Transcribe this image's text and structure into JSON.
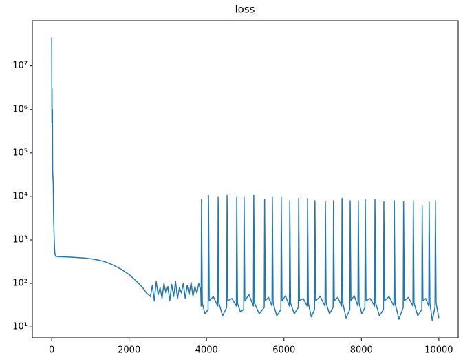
{
  "chart_data": {
    "type": "line",
    "title": "loss",
    "color": "#1f77b4",
    "yscale": "log",
    "xlim": [
      -500,
      10500
    ],
    "ylim": [
      5.6,
      110000000
    ],
    "xticks": [
      0,
      2000,
      4000,
      6000,
      8000,
      10000
    ],
    "yticks": [
      {
        "value": 10,
        "label": "10¹"
      },
      {
        "value": 100,
        "label": "10²"
      },
      {
        "value": 1000,
        "label": "10³"
      },
      {
        "value": 10000,
        "label": "10⁴"
      },
      {
        "value": 100000,
        "label": "10⁵"
      },
      {
        "value": 1000000,
        "label": "10⁶"
      },
      {
        "value": 10000000,
        "label": "10⁷"
      }
    ],
    "x": [
      0,
      5,
      10,
      15,
      20,
      25,
      30,
      40,
      50,
      60,
      70,
      80,
      100,
      200,
      400,
      600,
      800,
      1000,
      1200,
      1400,
      1600,
      1800,
      2000,
      2200,
      2350,
      2450,
      2500,
      2550,
      2600,
      2650,
      2700,
      2750,
      2800,
      2850,
      2900,
      2950,
      3000,
      3050,
      3100,
      3150,
      3200,
      3250,
      3300,
      3350,
      3400,
      3450,
      3500,
      3550,
      3600,
      3650,
      3700,
      3750,
      3800,
      3850,
      3860,
      3870,
      3890,
      3960,
      4040,
      4050,
      4070,
      4175,
      4290,
      4300,
      4320,
      4415,
      4520,
      4530,
      4550,
      4655,
      4770,
      4780,
      4800,
      4875,
      4960,
      4970,
      4990,
      5095,
      5210,
      5220,
      5240,
      5360,
      5490,
      5500,
      5520,
      5600,
      5690,
      5700,
      5720,
      5815,
      5920,
      5930,
      5950,
      6040,
      6140,
      6150,
      6170,
      6265,
      6370,
      6380,
      6400,
      6495,
      6600,
      6610,
      6630,
      6705,
      6790,
      6800,
      6820,
      6935,
      7060,
      7070,
      7090,
      7175,
      7270,
      7280,
      7300,
      7390,
      7490,
      7500,
      7520,
      7605,
      7700,
      7710,
      7730,
      7815,
      7910,
      7920,
      7940,
      8010,
      8090,
      8100,
      8120,
      8225,
      8340,
      8350,
      8370,
      8465,
      8570,
      8580,
      8600,
      8715,
      8840,
      8850,
      8870,
      8970,
      9080,
      9090,
      9110,
      9215,
      9330,
      9340,
      9360,
      9455,
      9560,
      9570,
      9590,
      9660,
      9740,
      9750,
      9770,
      9830,
      9900,
      9910,
      9930,
      10000
    ],
    "values": [
      45000000,
      500000,
      3000000,
      40000,
      1000000,
      40000,
      30000,
      20000,
      3000,
      1500,
      800,
      500,
      420,
      410,
      405,
      395,
      385,
      370,
      345,
      310,
      260,
      210,
      160,
      110,
      80,
      60,
      55,
      50,
      90,
      40,
      110,
      55,
      80,
      45,
      100,
      60,
      85,
      40,
      95,
      50,
      110,
      45,
      80,
      60,
      100,
      45,
      90,
      55,
      105,
      50,
      85,
      60,
      100,
      70,
      30,
      8500,
      35,
      20,
      25,
      10500,
      40,
      50,
      30,
      9500,
      35,
      18,
      28,
      10500,
      40,
      45,
      30,
      9500,
      35,
      22,
      25,
      9500,
      40,
      55,
      30,
      10500,
      35,
      20,
      28,
      8500,
      40,
      48,
      30,
      9500,
      35,
      18,
      25,
      9500,
      40,
      52,
      30,
      8000,
      35,
      20,
      28,
      9000,
      40,
      45,
      30,
      9000,
      35,
      17,
      25,
      8000,
      40,
      50,
      30,
      7500,
      35,
      20,
      28,
      8000,
      40,
      48,
      30,
      9000,
      35,
      16,
      25,
      8000,
      40,
      52,
      30,
      8000,
      35,
      20,
      28,
      8500,
      40,
      45,
      30,
      8500,
      35,
      18,
      25,
      7500,
      40,
      50,
      30,
      8000,
      35,
      15,
      28,
      7500,
      40,
      48,
      30,
      8000,
      35,
      18,
      25,
      6000,
      40,
      45,
      30,
      7500,
      35,
      14,
      28,
      8000,
      35,
      16
    ]
  }
}
